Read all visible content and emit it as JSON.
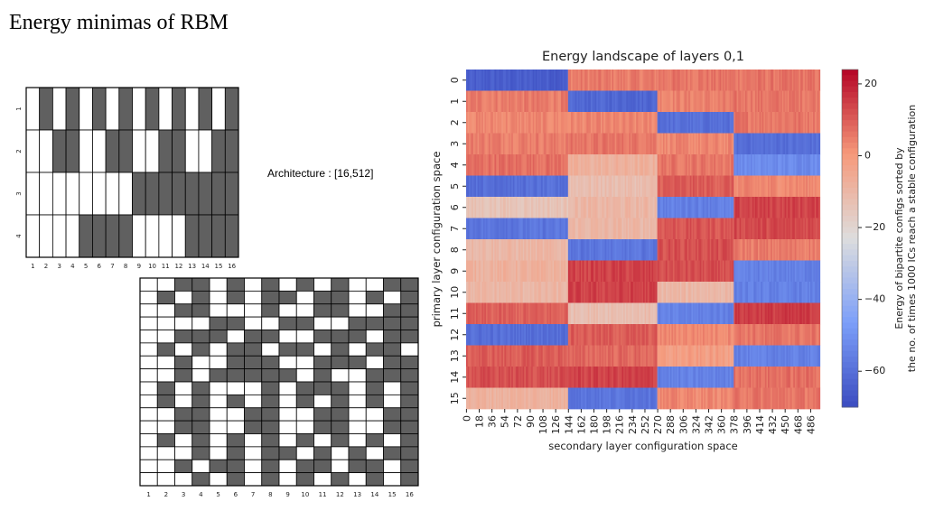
{
  "slide": {
    "title": "Energy minimas of RBM",
    "architecture_label": "Architecture : [16,512]"
  },
  "chart_data": [
    {
      "type": "heatmap",
      "name": "primary-states-grid",
      "rows": [
        "1",
        "2",
        "3",
        "4"
      ],
      "cols": [
        "1",
        "2",
        "3",
        "4",
        "5",
        "6",
        "7",
        "8",
        "9",
        "10",
        "11",
        "12",
        "13",
        "14",
        "15",
        "16"
      ],
      "values": [
        [
          0,
          1,
          0,
          1,
          0,
          1,
          0,
          1,
          0,
          1,
          0,
          1,
          0,
          1,
          0,
          1
        ],
        [
          0,
          0,
          1,
          1,
          0,
          0,
          1,
          1,
          0,
          0,
          1,
          1,
          0,
          0,
          1,
          1
        ],
        [
          0,
          0,
          0,
          0,
          0,
          0,
          0,
          0,
          1,
          1,
          1,
          1,
          1,
          1,
          1,
          1
        ],
        [
          0,
          0,
          0,
          0,
          1,
          1,
          1,
          1,
          0,
          0,
          0,
          0,
          1,
          1,
          1,
          1
        ]
      ],
      "colors": {
        "0": "#ffffff",
        "1": "#606060"
      }
    },
    {
      "type": "heatmap",
      "name": "secondary-states-grid",
      "rows": [
        "",
        "",
        "",
        "",
        "",
        "",
        "",
        "",
        "",
        "",
        "",
        "",
        "",
        "",
        "",
        ""
      ],
      "cols": [
        "1",
        "2",
        "3",
        "4",
        "5",
        "6",
        "7",
        "8",
        "9",
        "10",
        "11",
        "12",
        "13",
        "14",
        "15",
        "16"
      ],
      "values": [
        [
          0,
          0,
          1,
          1,
          0,
          1,
          0,
          1,
          0,
          1,
          0,
          1,
          0,
          0,
          1,
          1
        ],
        [
          0,
          1,
          0,
          1,
          0,
          1,
          0,
          1,
          1,
          0,
          1,
          1,
          0,
          1,
          0,
          1
        ],
        [
          0,
          0,
          1,
          1,
          0,
          0,
          0,
          1,
          0,
          0,
          1,
          1,
          0,
          0,
          1,
          1
        ],
        [
          0,
          0,
          0,
          0,
          1,
          1,
          0,
          0,
          1,
          1,
          0,
          0,
          1,
          1,
          1,
          1
        ],
        [
          0,
          0,
          1,
          1,
          1,
          0,
          1,
          1,
          0,
          0,
          1,
          1,
          1,
          0,
          1,
          1
        ],
        [
          0,
          1,
          0,
          1,
          0,
          1,
          1,
          0,
          1,
          1,
          0,
          1,
          0,
          1,
          1,
          0
        ],
        [
          0,
          0,
          1,
          0,
          0,
          1,
          1,
          1,
          0,
          0,
          1,
          1,
          1,
          0,
          1,
          1
        ],
        [
          0,
          0,
          1,
          0,
          1,
          1,
          1,
          1,
          1,
          0,
          1,
          0,
          0,
          1,
          1,
          1
        ],
        [
          0,
          1,
          0,
          1,
          0,
          0,
          0,
          1,
          0,
          1,
          1,
          1,
          0,
          1,
          0,
          1
        ],
        [
          0,
          1,
          0,
          1,
          0,
          1,
          0,
          1,
          0,
          1,
          0,
          1,
          0,
          1,
          0,
          1
        ],
        [
          0,
          0,
          1,
          1,
          0,
          0,
          1,
          1,
          0,
          0,
          1,
          1,
          0,
          0,
          1,
          1
        ],
        [
          0,
          0,
          1,
          1,
          0,
          0,
          1,
          1,
          0,
          0,
          1,
          1,
          0,
          0,
          1,
          1
        ],
        [
          0,
          1,
          0,
          1,
          0,
          1,
          0,
          1,
          0,
          1,
          0,
          1,
          0,
          1,
          0,
          1
        ],
        [
          0,
          0,
          0,
          1,
          0,
          1,
          0,
          1,
          1,
          0,
          1,
          0,
          1,
          0,
          1,
          1
        ],
        [
          0,
          0,
          1,
          0,
          1,
          1,
          0,
          1,
          0,
          1,
          1,
          0,
          1,
          1,
          0,
          1
        ],
        [
          0,
          0,
          0,
          1,
          0,
          1,
          0,
          1,
          0,
          1,
          0,
          1,
          0,
          1,
          0,
          1
        ]
      ],
      "colors": {
        "0": "#ffffff",
        "1": "#606060"
      }
    },
    {
      "type": "heatmap",
      "name": "energy-landscape",
      "title": "Energy landscape of layers 0,1",
      "xlabel": "secondary layer configuration space",
      "ylabel": "primary layer configuration space",
      "colorbar_label_lines": [
        "Energy of bipartite configs sorted by",
        "the no. of times 1000 ICs reach a stable configuration"
      ],
      "rows": [
        "0",
        "1",
        "2",
        "3",
        "4",
        "5",
        "6",
        "7",
        "8",
        "9",
        "10",
        "11",
        "12",
        "13",
        "14",
        "15"
      ],
      "x_tick_labels": [
        "0",
        "18",
        "36",
        "54",
        "72",
        "90",
        "108",
        "126",
        "144",
        "162",
        "180",
        "198",
        "216",
        "234",
        "252",
        "270",
        "288",
        "306",
        "324",
        "342",
        "360",
        "378",
        "396",
        "414",
        "432",
        "450",
        "468",
        "486"
      ],
      "x_range": [
        0,
        500
      ],
      "column_boundaries": [
        0,
        144,
        270,
        378,
        500
      ],
      "cell_energy": [
        [
          -65,
          5,
          6,
          6
        ],
        [
          5,
          -62,
          4,
          6
        ],
        [
          3,
          3,
          -60,
          6
        ],
        [
          5,
          6,
          3,
          -60
        ],
        [
          7,
          -8,
          6,
          -52
        ],
        [
          -60,
          -12,
          10,
          3
        ],
        [
          -14,
          -10,
          -55,
          14
        ],
        [
          -58,
          -10,
          11,
          13
        ],
        [
          -10,
          -58,
          12,
          5
        ],
        [
          -8,
          14,
          12,
          -55
        ],
        [
          -10,
          14,
          -10,
          -55
        ],
        [
          9,
          -12,
          -55,
          15
        ],
        [
          -60,
          10,
          3,
          6
        ],
        [
          10,
          8,
          -2,
          -55
        ],
        [
          12,
          14,
          -55,
          7
        ],
        [
          -8,
          -58,
          3,
          6
        ]
      ],
      "colorbar": {
        "min": -70,
        "max": 24,
        "ticks": [
          20,
          0,
          -20,
          -40,
          -60
        ],
        "tick_labels": [
          "20",
          "0",
          "−20",
          "−40",
          "−60"
        ]
      }
    }
  ]
}
